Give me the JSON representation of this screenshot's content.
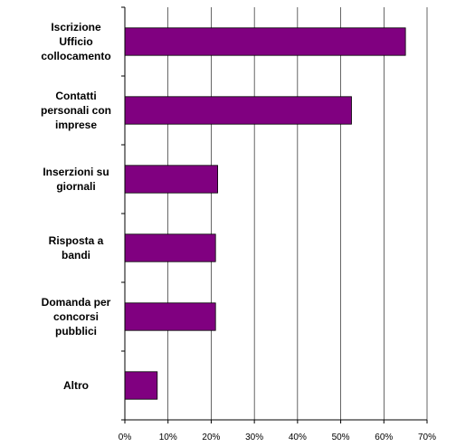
{
  "chart_data": {
    "type": "bar",
    "orientation": "horizontal",
    "categories": [
      "Iscrizione\nUfficio\ncollocamento",
      "Contatti\npersonali con\nimprese",
      "Inserzioni su\ngiornali",
      "Risposta a\nbandi",
      "Domanda per\nconcorsi\npubblici",
      "Altro"
    ],
    "values": [
      65,
      52.5,
      21.5,
      21,
      21,
      7.5
    ],
    "unit": "%",
    "xlim": [
      0,
      70
    ],
    "xticks": [
      0,
      10,
      20,
      30,
      40,
      50,
      60,
      70
    ],
    "xtick_labels": [
      "0%",
      "10%",
      "20%",
      "30%",
      "40%",
      "50%",
      "60%",
      "70%"
    ],
    "title": "",
    "xlabel": "",
    "ylabel": "",
    "grid": "vertical",
    "legend": "none",
    "colors": {
      "bar_fill": "#800080",
      "bar_stroke": "#000000",
      "grid": "#000000"
    }
  }
}
